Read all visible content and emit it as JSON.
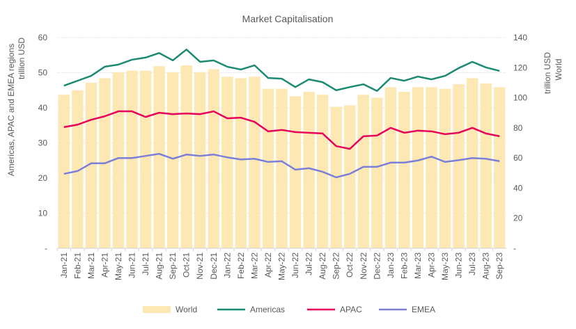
{
  "chart_data": {
    "type": "bar+line",
    "title": "Market Capitalisation",
    "ylabel_left": [
      "Americas, APAC and EMEA regions",
      "trillion USD"
    ],
    "ylabel_right": [
      "trillion USD",
      "World"
    ],
    "ylim_left": [
      0,
      60
    ],
    "yticks_left": [
      "-",
      "10",
      "20",
      "30",
      "40",
      "50",
      "60"
    ],
    "ylim_right": [
      0,
      140
    ],
    "yticks_right": [
      "-",
      "20",
      "40",
      "60",
      "80",
      "100",
      "120",
      "140"
    ],
    "grid": true,
    "legend": "bottom",
    "categories": [
      "Jan-21",
      "Feb-21",
      "Mar-21",
      "Apr-21",
      "May-21",
      "Jun-21",
      "Jul-21",
      "Aug-21",
      "Sep-21",
      "Oct-21",
      "Nov-21",
      "Dec-21",
      "Jan-22",
      "Feb-22",
      "Mar-22",
      "Apr-22",
      "May-22",
      "Jun-22",
      "Jul-22",
      "Aug-22",
      "Sep-22",
      "Oct-22",
      "Nov-22",
      "Dec-22",
      "Jan-23",
      "Feb-23",
      "Mar-23",
      "Apr-23",
      "May-23",
      "Jun-23",
      "Jul-23",
      "Aug-23",
      "Sep-23"
    ],
    "series": [
      {
        "name": "World",
        "type": "bar",
        "axis": "right",
        "color": "#FDE7B3",
        "values": [
          102,
          105,
          110,
          113,
          117,
          118,
          118,
          121,
          117,
          121.5,
          117,
          119,
          114,
          113,
          114,
          106,
          106,
          101,
          104,
          102,
          94,
          95,
          102,
          100,
          107,
          104,
          107,
          107,
          106,
          109,
          113,
          109.5,
          107
        ]
      },
      {
        "name": "Americas",
        "type": "line",
        "axis": "left",
        "color": "#1B8A72",
        "values": [
          46.3,
          47.7,
          49.1,
          51.7,
          52.3,
          53.7,
          54.3,
          55.6,
          53.5,
          56.6,
          53.1,
          53.5,
          51.7,
          50.9,
          52.1,
          48.5,
          48.3,
          45.9,
          48.1,
          47.3,
          45,
          45.9,
          46.7,
          44.8,
          48.5,
          47.7,
          48.9,
          48.1,
          49.1,
          51.3,
          53.1,
          51.5,
          50.5
        ]
      },
      {
        "name": "APAC",
        "type": "line",
        "axis": "left",
        "color": "#E8005A",
        "values": [
          34.5,
          35.2,
          36.6,
          37.6,
          39,
          39,
          37.4,
          38.6,
          38.2,
          38.4,
          38.2,
          39,
          37,
          37.2,
          36,
          33.3,
          33.7,
          33.1,
          32.9,
          32.7,
          29.1,
          28.3,
          31.9,
          32.1,
          34.3,
          32.9,
          33.5,
          33.3,
          32.5,
          32.9,
          34.3,
          32.7,
          31.9
        ]
      },
      {
        "name": "EMEA",
        "type": "line",
        "axis": "left",
        "color": "#7B7FD8",
        "values": [
          21.2,
          22,
          24.2,
          24.2,
          25.7,
          25.7,
          26.3,
          26.9,
          25.5,
          26.7,
          26.3,
          26.7,
          25.9,
          25.3,
          25.5,
          24.6,
          24.8,
          22.4,
          22.8,
          21.8,
          20.2,
          21.2,
          23.2,
          23.2,
          24.4,
          24.4,
          25,
          26.1,
          24.6,
          25.1,
          25.7,
          25.5,
          24.8
        ]
      }
    ]
  }
}
